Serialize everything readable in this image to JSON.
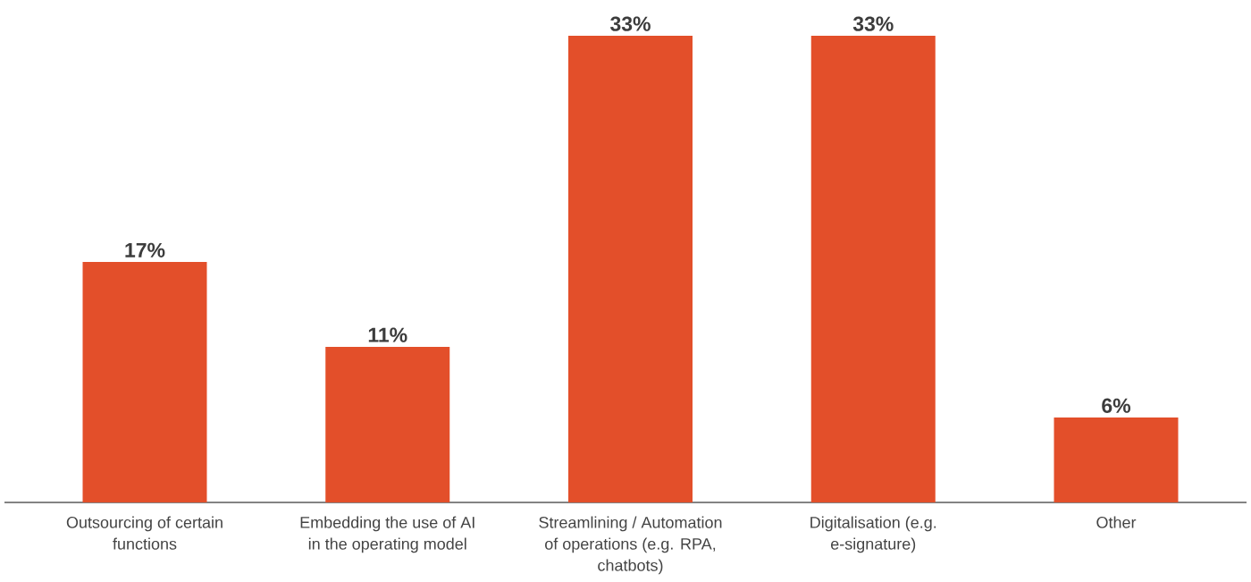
{
  "chart_data": {
    "type": "bar",
    "categories": [
      "Outsourcing of certain functions",
      "Embedding the use of AI in the operating model",
      "Streamlining / Automation of operations (e.g. RPA, chatbots)",
      "Digitalisation (e.g. e-signature)",
      "Other"
    ],
    "values": [
      17,
      11,
      33,
      33,
      6
    ],
    "value_labels": [
      "17%",
      "11%",
      "33%",
      "33%",
      "6%"
    ],
    "color": "#e34f2a"
  }
}
